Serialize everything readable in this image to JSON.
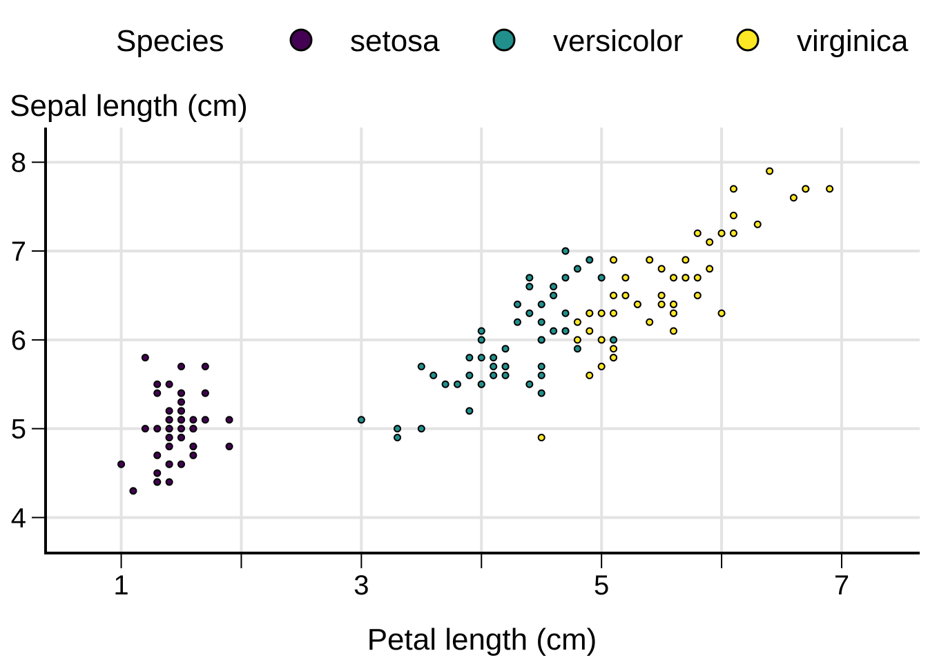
{
  "chart_data": {
    "type": "scatter",
    "title": "",
    "xlabel": "Petal length (cm)",
    "ylabel": "Sepal length (cm)",
    "xlim": [
      0.37,
      7.65
    ],
    "ylim": [
      3.6,
      8.39
    ],
    "x_ticks": [
      1,
      3,
      5,
      7
    ],
    "x_tick_labels": [
      "1",
      "3",
      "5",
      "7"
    ],
    "x_minor_ticks": [
      2,
      4,
      6
    ],
    "y_ticks": [
      4,
      5,
      6,
      7,
      8
    ],
    "y_tick_labels": [
      "4",
      "5",
      "6",
      "7",
      "8"
    ],
    "grid": true,
    "legend": {
      "title": "Species",
      "placement": "top",
      "entries": [
        "setosa",
        "versicolor",
        "virginica"
      ]
    },
    "series": [
      {
        "name": "setosa",
        "color": "#440154",
        "x": [
          1.4,
          1.4,
          1.3,
          1.5,
          1.4,
          1.7,
          1.4,
          1.5,
          1.4,
          1.5,
          1.5,
          1.6,
          1.4,
          1.1,
          1.2,
          1.5,
          1.3,
          1.4,
          1.7,
          1.5,
          1.7,
          1.5,
          1.0,
          1.7,
          1.9,
          1.6,
          1.6,
          1.5,
          1.4,
          1.6,
          1.6,
          1.5,
          1.5,
          1.4,
          1.5,
          1.2,
          1.3,
          1.4,
          1.3,
          1.5,
          1.3,
          1.3,
          1.3,
          1.6,
          1.9,
          1.4,
          1.6,
          1.4,
          1.5,
          1.4
        ],
        "y": [
          5.1,
          4.9,
          4.7,
          4.6,
          5.0,
          5.4,
          4.6,
          5.0,
          4.4,
          4.9,
          5.4,
          4.8,
          4.8,
          4.3,
          5.8,
          5.7,
          5.4,
          5.1,
          5.7,
          5.1,
          5.4,
          5.1,
          4.6,
          5.1,
          4.8,
          5.0,
          5.0,
          5.2,
          5.2,
          4.7,
          4.8,
          5.4,
          5.2,
          5.5,
          4.9,
          5.0,
          5.5,
          4.9,
          4.4,
          5.1,
          5.0,
          4.5,
          4.4,
          5.0,
          5.1,
          4.8,
          5.1,
          4.6,
          5.3,
          5.0
        ]
      },
      {
        "name": "versicolor",
        "color": "#21908C",
        "x": [
          4.7,
          4.5,
          4.9,
          4.0,
          4.6,
          4.5,
          4.7,
          3.3,
          4.6,
          3.9,
          3.5,
          4.2,
          4.0,
          4.7,
          3.6,
          4.4,
          4.5,
          4.1,
          4.5,
          3.9,
          4.8,
          4.0,
          4.9,
          4.7,
          4.3,
          4.4,
          4.8,
          5.0,
          4.5,
          3.5,
          3.8,
          3.7,
          3.9,
          5.1,
          4.5,
          4.5,
          4.7,
          4.4,
          4.1,
          4.0,
          4.4,
          4.6,
          4.0,
          3.3,
          4.2,
          4.2,
          4.2,
          4.3,
          3.0,
          4.1
        ],
        "y": [
          7.0,
          6.4,
          6.9,
          5.5,
          6.5,
          5.7,
          6.3,
          4.9,
          6.6,
          5.2,
          5.0,
          5.9,
          6.0,
          6.1,
          5.6,
          6.7,
          5.6,
          5.8,
          6.2,
          5.6,
          5.9,
          6.1,
          6.3,
          6.1,
          6.4,
          6.6,
          6.8,
          6.7,
          6.0,
          5.7,
          5.5,
          5.5,
          5.8,
          6.0,
          5.4,
          6.0,
          6.7,
          6.3,
          5.6,
          5.5,
          5.5,
          6.1,
          5.8,
          5.0,
          5.6,
          5.7,
          5.7,
          6.2,
          5.1,
          5.7
        ]
      },
      {
        "name": "virginica",
        "color": "#FDE725",
        "x": [
          6.0,
          5.1,
          5.9,
          5.6,
          5.8,
          6.6,
          4.5,
          6.3,
          5.8,
          6.1,
          5.1,
          5.3,
          5.5,
          5.0,
          5.1,
          5.3,
          5.5,
          6.7,
          6.9,
          5.0,
          5.7,
          4.9,
          6.7,
          4.9,
          5.7,
          6.0,
          4.8,
          4.9,
          5.6,
          5.8,
          6.1,
          6.4,
          5.6,
          5.1,
          5.6,
          6.1,
          5.6,
          5.5,
          4.8,
          5.4,
          5.6,
          5.1,
          5.1,
          5.9,
          5.7,
          5.2,
          5.0,
          5.2,
          5.4,
          5.1
        ],
        "y": [
          6.3,
          5.8,
          7.1,
          6.3,
          6.5,
          7.6,
          4.9,
          7.3,
          6.7,
          7.2,
          6.5,
          6.4,
          6.8,
          5.7,
          5.8,
          6.4,
          6.5,
          7.7,
          7.7,
          6.0,
          6.9,
          5.6,
          7.7,
          6.3,
          6.7,
          7.2,
          6.2,
          6.1,
          6.4,
          7.2,
          7.4,
          7.9,
          6.4,
          6.3,
          6.1,
          7.7,
          6.3,
          6.4,
          6.0,
          6.9,
          6.7,
          6.9,
          5.8,
          6.8,
          6.7,
          6.7,
          6.3,
          6.5,
          6.2,
          5.9
        ]
      }
    ]
  }
}
